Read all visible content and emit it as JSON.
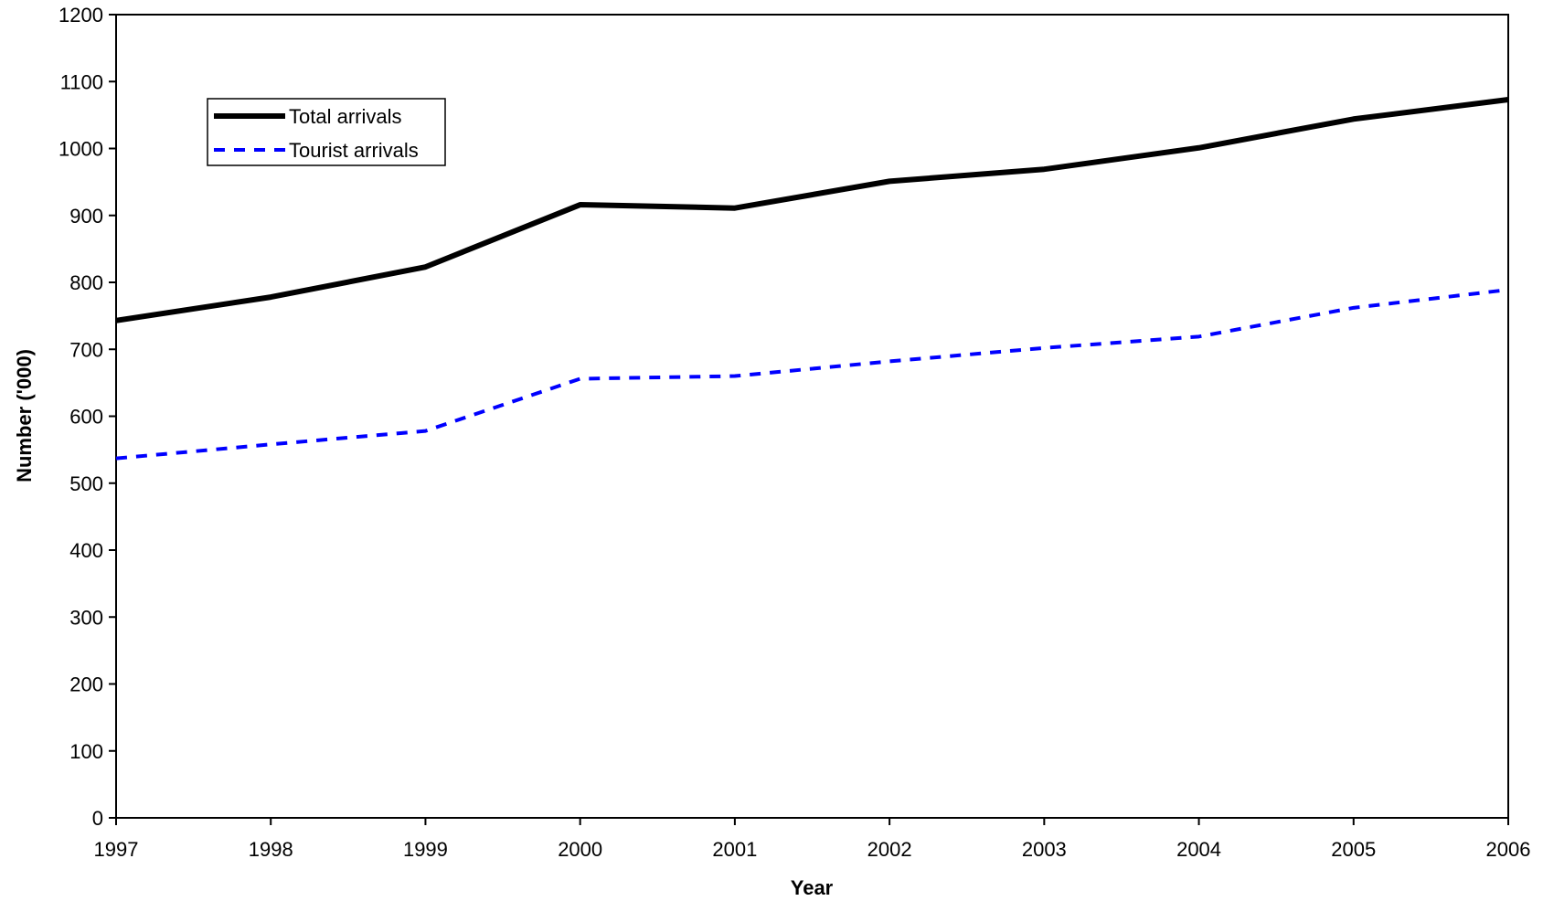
{
  "chart_data": {
    "type": "line",
    "title": "",
    "xlabel": "Year",
    "ylabel": "Number ('000)",
    "x": [
      1997,
      1998,
      1999,
      2000,
      2001,
      2002,
      2003,
      2004,
      2005,
      2006
    ],
    "ylim": [
      0,
      1200
    ],
    "yticks": [
      0,
      100,
      200,
      300,
      400,
      500,
      600,
      700,
      800,
      900,
      1000,
      1100,
      1200
    ],
    "grid": false,
    "legend_position": "top-left",
    "series": [
      {
        "name": "Total arrivals",
        "values": [
          743,
          778,
          823,
          916,
          911,
          951,
          969,
          1001,
          1044,
          1073
        ],
        "color": "#000000",
        "style": "solid"
      },
      {
        "name": "Tourist arrivals",
        "values": [
          537,
          558,
          578,
          656,
          660,
          682,
          702,
          719,
          762,
          789
        ],
        "color": "#0000ff",
        "style": "dashed"
      }
    ]
  }
}
